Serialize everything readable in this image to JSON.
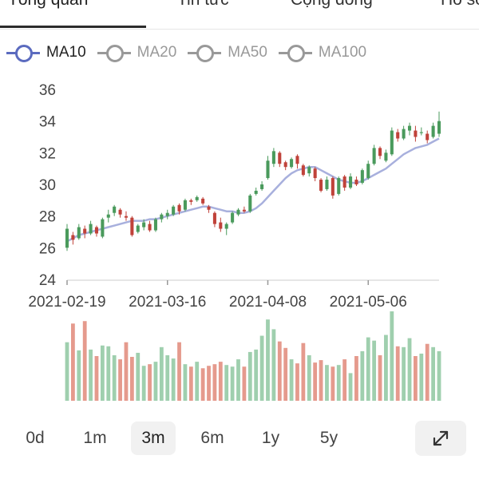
{
  "tabs": [
    {
      "label": "Tổng quan",
      "active": true
    },
    {
      "label": "Tin tức",
      "active": false
    },
    {
      "label": "Cộng đồng",
      "active": false
    },
    {
      "label": "Hồ sơ",
      "active": false
    }
  ],
  "legend": [
    {
      "label": "MA10",
      "color": "#5b6bbf",
      "active": true
    },
    {
      "label": "MA20",
      "color": "#999999",
      "active": false
    },
    {
      "label": "MA50",
      "color": "#999999",
      "active": false
    },
    {
      "label": "MA100",
      "color": "#999999",
      "active": false
    }
  ],
  "ranges": [
    {
      "label": "0d",
      "active": false
    },
    {
      "label": "1m",
      "active": false
    },
    {
      "label": "3m",
      "active": true
    },
    {
      "label": "6m",
      "active": false
    },
    {
      "label": "1y",
      "active": false
    },
    {
      "label": "5y",
      "active": false
    }
  ],
  "expand_icon": "expand-arrows-icon",
  "chart_data": {
    "type": "candlestick",
    "title": "",
    "xlabel": "",
    "ylabel": "",
    "ylim": [
      24,
      36
    ],
    "y_ticks": [
      "24",
      "26",
      "28",
      "30",
      "32",
      "34",
      "36"
    ],
    "x_ticks": [
      {
        "label": "2021-02-19",
        "index": 0
      },
      {
        "label": "2021-03-16",
        "index": 17
      },
      {
        "label": "2021-04-08",
        "index": 34
      },
      {
        "label": "2021-05-06",
        "index": 51
      }
    ],
    "colors": {
      "up": "#4a9a5c",
      "down": "#c0423a",
      "ma": "#a8b0dd",
      "vol_up": "#9fcfae",
      "vol_down": "#e59a8d"
    },
    "ma_series_name": "MA10",
    "candles": [
      [
        26.0,
        27.2,
        27.5,
        25.8
      ],
      [
        26.8,
        26.5,
        27.0,
        26.2
      ],
      [
        26.6,
        27.3,
        27.5,
        26.5
      ],
      [
        27.2,
        26.9,
        27.4,
        26.6
      ],
      [
        26.9,
        27.5,
        27.7,
        26.8
      ],
      [
        27.3,
        26.9,
        27.4,
        26.7
      ],
      [
        26.7,
        27.8,
        27.9,
        26.6
      ],
      [
        27.9,
        28.1,
        28.4,
        27.6
      ],
      [
        28.2,
        28.6,
        28.7,
        28.0
      ],
      [
        28.4,
        28.1,
        28.5,
        27.9
      ],
      [
        28.0,
        27.9,
        28.3,
        27.7
      ],
      [
        27.9,
        26.8,
        28.0,
        26.7
      ],
      [
        27.0,
        27.4,
        27.5,
        26.9
      ],
      [
        27.3,
        27.6,
        27.8,
        27.1
      ],
      [
        27.5,
        27.1,
        27.7,
        27.0
      ],
      [
        27.1,
        27.8,
        27.9,
        27.0
      ],
      [
        27.8,
        28.1,
        28.2,
        27.6
      ],
      [
        28.0,
        28.2,
        28.4,
        27.8
      ],
      [
        28.1,
        28.6,
        28.7,
        28.0
      ],
      [
        28.7,
        28.3,
        28.8,
        28.1
      ],
      [
        28.4,
        29.0,
        29.1,
        28.3
      ],
      [
        29.0,
        28.9,
        29.1,
        28.7
      ],
      [
        29.0,
        29.2,
        29.3,
        28.9
      ],
      [
        29.1,
        28.8,
        29.2,
        28.7
      ],
      [
        28.6,
        28.4,
        28.7,
        28.2
      ],
      [
        28.2,
        27.5,
        28.3,
        27.3
      ],
      [
        27.6,
        27.2,
        27.9,
        27.0
      ],
      [
        27.2,
        27.5,
        27.6,
        26.8
      ],
      [
        27.6,
        28.2,
        28.3,
        27.5
      ],
      [
        28.1,
        28.4,
        28.5,
        28.0
      ],
      [
        28.4,
        28.3,
        28.6,
        28.2
      ],
      [
        28.3,
        29.3,
        29.4,
        28.2
      ],
      [
        29.4,
        29.6,
        29.8,
        29.3
      ],
      [
        29.7,
        30.0,
        30.2,
        29.6
      ],
      [
        30.4,
        31.5,
        31.8,
        30.3
      ],
      [
        31.3,
        32.1,
        32.3,
        31.1
      ],
      [
        32.0,
        31.3,
        32.1,
        31.1
      ],
      [
        31.4,
        31.1,
        31.5,
        30.9
      ],
      [
        31.1,
        31.6,
        31.7,
        31.0
      ],
      [
        31.8,
        31.3,
        31.9,
        31.0
      ],
      [
        31.2,
        30.6,
        31.3,
        30.5
      ],
      [
        30.7,
        31.1,
        31.2,
        30.5
      ],
      [
        31.0,
        30.4,
        31.1,
        30.2
      ],
      [
        30.3,
        29.6,
        30.4,
        29.5
      ],
      [
        29.7,
        30.3,
        30.5,
        29.6
      ],
      [
        30.4,
        29.3,
        30.5,
        29.1
      ],
      [
        29.4,
        30.4,
        30.5,
        29.3
      ],
      [
        30.5,
        29.8,
        30.6,
        29.6
      ],
      [
        29.8,
        30.5,
        30.7,
        29.7
      ],
      [
        30.3,
        30.0,
        30.5,
        29.9
      ],
      [
        30.1,
        30.9,
        31.0,
        30.0
      ],
      [
        30.4,
        31.3,
        31.5,
        30.3
      ],
      [
        31.3,
        32.3,
        32.5,
        31.2
      ],
      [
        32.3,
        31.8,
        32.4,
        31.6
      ],
      [
        31.5,
        32.0,
        32.2,
        31.4
      ],
      [
        31.9,
        33.4,
        33.6,
        31.8
      ],
      [
        33.3,
        32.9,
        33.5,
        32.7
      ],
      [
        32.9,
        33.5,
        33.7,
        32.8
      ],
      [
        33.4,
        33.7,
        33.9,
        33.1
      ],
      [
        33.4,
        33.0,
        33.7,
        32.7
      ],
      [
        33.3,
        33.3,
        33.6,
        33.1
      ],
      [
        33.2,
        32.8,
        33.4,
        32.6
      ],
      [
        33.0,
        33.7,
        33.9,
        32.9
      ],
      [
        33.2,
        34.0,
        34.6,
        33.0
      ]
    ],
    "ma10": [
      26.4,
      26.6,
      26.8,
      26.9,
      27.0,
      27.1,
      27.2,
      27.3,
      27.4,
      27.5,
      27.6,
      27.7,
      27.7,
      27.7,
      27.8,
      27.8,
      27.9,
      28.0,
      28.1,
      28.2,
      28.3,
      28.4,
      28.5,
      28.6,
      28.6,
      28.5,
      28.4,
      28.3,
      28.3,
      28.2,
      28.2,
      28.3,
      28.5,
      28.8,
      29.2,
      29.6,
      30.0,
      30.4,
      30.7,
      30.9,
      31.0,
      31.1,
      31.1,
      30.9,
      30.7,
      30.5,
      30.3,
      30.2,
      30.1,
      30.1,
      30.2,
      30.4,
      30.6,
      30.8,
      31.0,
      31.3,
      31.6,
      31.9,
      32.1,
      32.3,
      32.4,
      32.5,
      32.7,
      32.9
    ],
    "volume": [
      0.72,
      0.95,
      0.62,
      0.98,
      0.63,
      0.55,
      0.68,
      0.67,
      0.56,
      0.51,
      0.72,
      0.54,
      0.59,
      0.43,
      0.45,
      0.48,
      0.66,
      0.56,
      0.52,
      0.72,
      0.45,
      0.42,
      0.48,
      0.4,
      0.43,
      0.45,
      0.48,
      0.44,
      0.42,
      0.51,
      0.42,
      0.6,
      0.63,
      0.8,
      1.0,
      0.88,
      0.73,
      0.65,
      0.51,
      0.46,
      0.71,
      0.56,
      0.47,
      0.5,
      0.44,
      0.42,
      0.44,
      0.51,
      0.34,
      0.55,
      0.61,
      0.78,
      0.74,
      0.56,
      0.81,
      1.1,
      0.67,
      0.66,
      0.77,
      0.55,
      0.58,
      0.7,
      0.66,
      0.61
    ]
  }
}
